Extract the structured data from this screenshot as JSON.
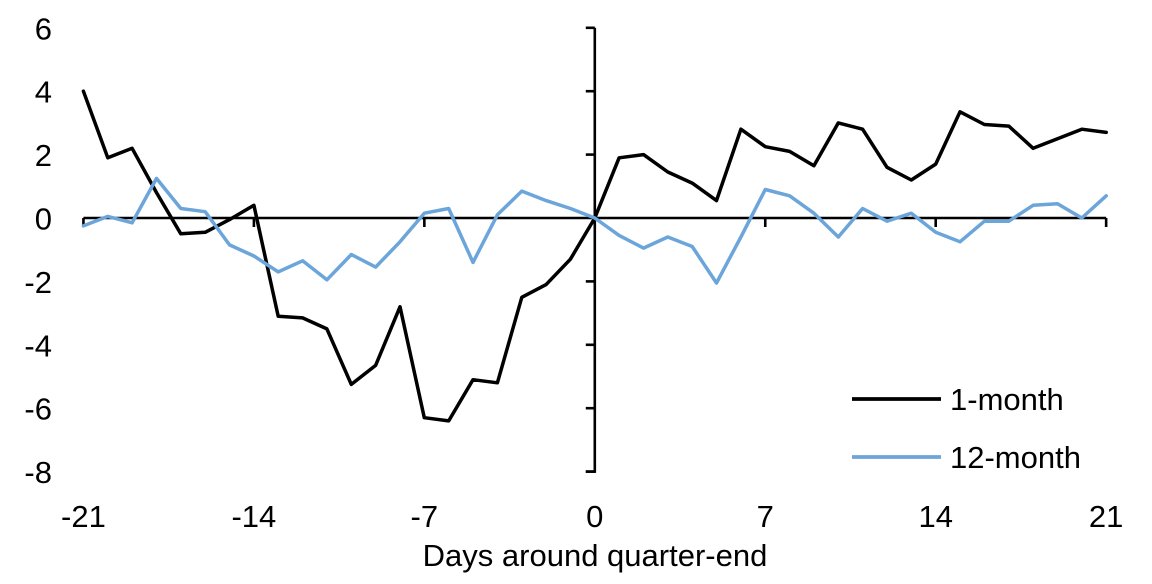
{
  "chart_data": {
    "type": "line",
    "title": "",
    "xlabel": "Days around quarter-end",
    "ylabel": "",
    "grid": false,
    "legend_position": "lower right",
    "xlim": [
      -21,
      21
    ],
    "ylim": [
      -8,
      6
    ],
    "x_ticks": [
      -21,
      -14,
      -7,
      0,
      7,
      14,
      21
    ],
    "y_ticks": [
      6,
      4,
      2,
      0,
      -2,
      -4,
      -6,
      -8
    ],
    "x": [
      -21,
      -20,
      -19,
      -18,
      -17,
      -16,
      -15,
      -14,
      -13,
      -12,
      -11,
      -10,
      -9,
      -8,
      -7,
      -6,
      -5,
      -4,
      -3,
      -2,
      -1,
      0,
      1,
      2,
      3,
      4,
      5,
      6,
      7,
      8,
      9,
      10,
      11,
      12,
      13,
      14,
      15,
      16,
      17,
      18,
      19,
      20,
      21
    ],
    "series": [
      {
        "name": "1-month",
        "color": "#000000",
        "values": [
          4.0,
          1.9,
          2.2,
          0.8,
          -0.5,
          -0.45,
          -0.05,
          0.4,
          -3.1,
          -3.15,
          -3.5,
          -5.25,
          -4.65,
          -2.8,
          -6.3,
          -6.4,
          -5.1,
          -5.2,
          -2.5,
          -2.1,
          -1.3,
          0.0,
          1.9,
          2.0,
          1.45,
          1.1,
          0.55,
          2.8,
          2.25,
          2.1,
          1.65,
          3.0,
          2.8,
          1.6,
          1.2,
          1.7,
          3.35,
          2.95,
          2.9,
          2.2,
          2.5,
          2.8,
          2.7
        ]
      },
      {
        "name": "12-month",
        "color": "#6BA5DA",
        "values": [
          -0.25,
          0.05,
          -0.15,
          1.25,
          0.3,
          0.2,
          -0.85,
          -1.2,
          -1.7,
          -1.35,
          -1.95,
          -1.15,
          -1.55,
          -0.75,
          0.15,
          0.3,
          -1.4,
          0.1,
          0.85,
          0.55,
          0.3,
          0.0,
          -0.55,
          -0.95,
          -0.6,
          -0.9,
          -2.05,
          -0.6,
          0.9,
          0.7,
          0.15,
          -0.6,
          0.3,
          -0.1,
          0.15,
          -0.45,
          -0.75,
          -0.1,
          -0.1,
          0.4,
          0.45,
          0.0,
          0.7
        ]
      }
    ]
  }
}
